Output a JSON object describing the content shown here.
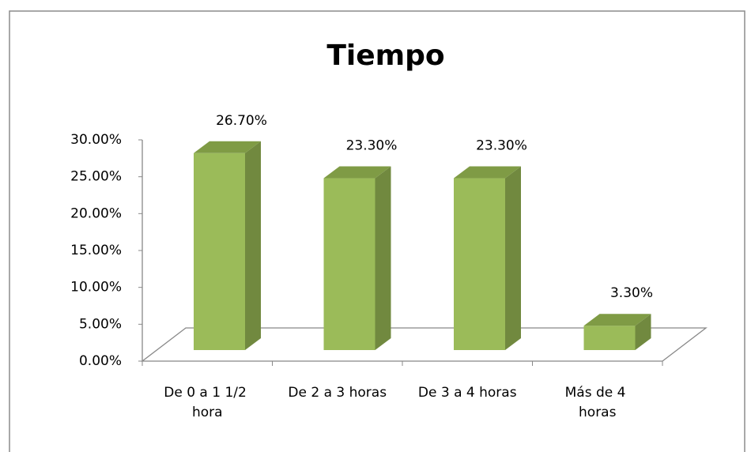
{
  "chart_data": {
    "type": "bar3d",
    "title": "Tiempo",
    "categories": [
      "De 0 a 1 1/2 hora",
      "De 2 a 3 horas",
      "De 3 a 4 horas",
      "Más de 4 horas"
    ],
    "values": [
      26.7,
      23.3,
      23.3,
      3.3
    ],
    "value_labels": [
      "26.70%",
      "23.30%",
      "23.30%",
      "3.30%"
    ],
    "color": "#9bbb59",
    "ylim": [
      0,
      30
    ],
    "yticks": [
      {
        "value": 0,
        "label": "0.00%"
      },
      {
        "value": 5,
        "label": "5.00%"
      },
      {
        "value": 10,
        "label": "10.00%"
      },
      {
        "value": 15,
        "label": "15.00%"
      },
      {
        "value": 20,
        "label": "20.00%"
      },
      {
        "value": 25,
        "label": "25.00%"
      },
      {
        "value": 30,
        "label": "30.00%"
      }
    ],
    "grid": false
  }
}
